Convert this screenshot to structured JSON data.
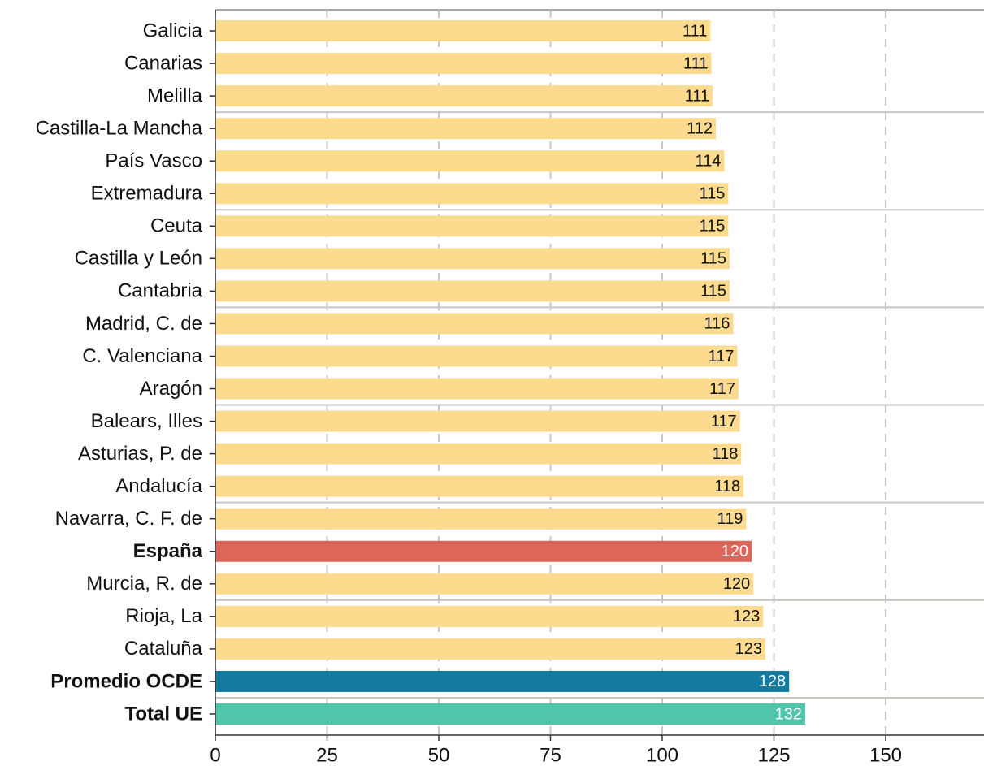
{
  "chart_data": {
    "type": "barh",
    "categories": [
      "Galicia",
      "Canarias",
      "Melilla",
      "Castilla-La Mancha",
      "País Vasco",
      "Extremadura",
      "Ceuta",
      "Castilla y León",
      "Cantabria",
      "Madrid, C. de",
      "C. Valenciana",
      "Aragón",
      "Balears, Illes",
      "Asturias, P. de",
      "Andalucía",
      "Navarra, C. F. de",
      "España",
      "Murcia, R. de",
      "Rioja, La",
      "Cataluña",
      "Promedio OCDE",
      "Total UE"
    ],
    "values": [
      110.8,
      111.0,
      111.3,
      112.0,
      113.9,
      114.8,
      114.8,
      115.1,
      115.1,
      115.9,
      116.8,
      117.1,
      117.4,
      117.7,
      118.2,
      118.8,
      120.0,
      120.4,
      122.6,
      123.1,
      128.4,
      132.0
    ],
    "value_labels": [
      "111",
      "111",
      "111",
      "112",
      "114",
      "115",
      "115",
      "115",
      "115",
      "116",
      "117",
      "117",
      "117",
      "118",
      "118",
      "119",
      "120",
      "120",
      "123",
      "123",
      "128",
      "132"
    ],
    "color": "#fddb8e",
    "colors": [
      "#fddb8e",
      "#fddb8e",
      "#fddb8e",
      "#fddb8e",
      "#fddb8e",
      "#fddb8e",
      "#fddb8e",
      "#fddb8e",
      "#fddb8e",
      "#fddb8e",
      "#fddb8e",
      "#fddb8e",
      "#fddb8e",
      "#fddb8e",
      "#fddb8e",
      "#fddb8e",
      "#db6659",
      "#fddb8e",
      "#fddb8e",
      "#fddb8e",
      "#137aa0",
      "#4fc6ab"
    ],
    "xlim": [
      0,
      172
    ],
    "xticks": [
      0,
      25,
      50,
      75,
      100,
      125,
      150
    ],
    "grid": true
  }
}
